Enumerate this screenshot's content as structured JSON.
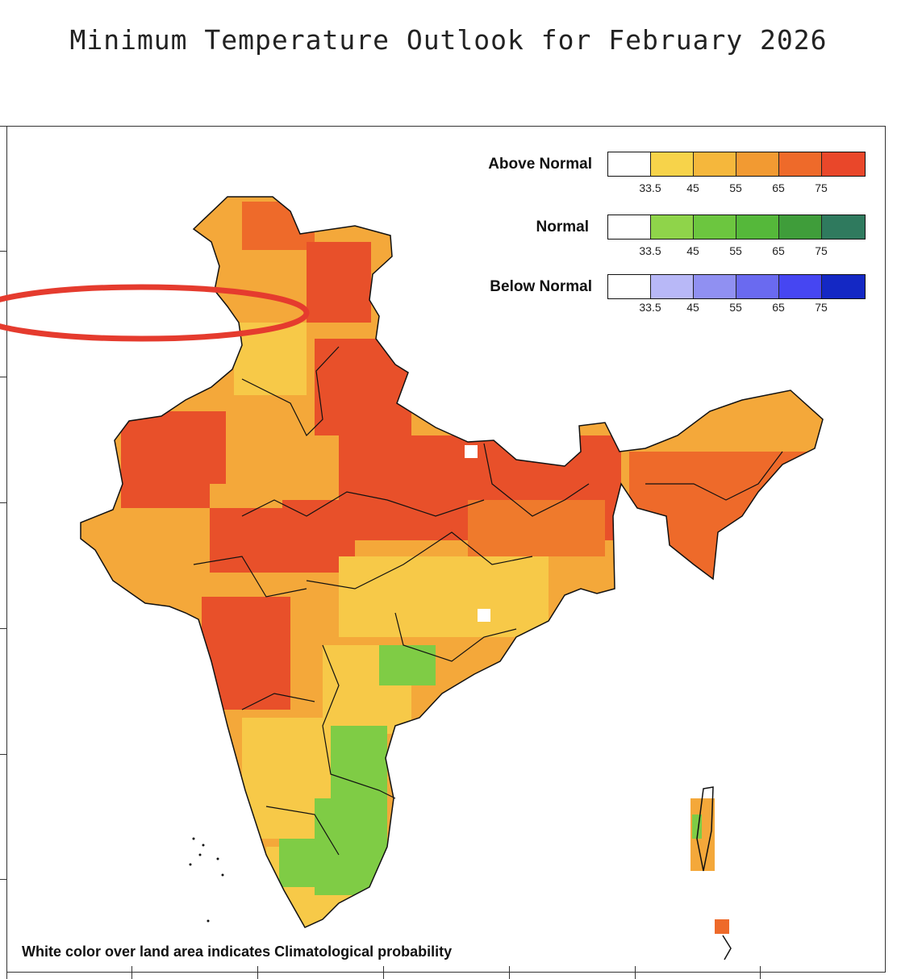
{
  "title": "Minimum Temperature Outlook for February 2026",
  "note": "White color over land area indicates Climatological probability",
  "legend": {
    "ticks": [
      "33.5",
      "45",
      "55",
      "65",
      "75"
    ],
    "rows": [
      {
        "label": "Above Normal",
        "colors": [
          "#ffffff",
          "#f7d34a",
          "#f5b73c",
          "#f29a32",
          "#ee6a2a",
          "#e9472a"
        ]
      },
      {
        "label": "Normal",
        "colors": [
          "#ffffff",
          "#8fd44a",
          "#6cc63f",
          "#55b83a",
          "#3f9d3a",
          "#2f7a5e"
        ]
      },
      {
        "label": "Below Normal",
        "colors": [
          "#ffffff",
          "#b8b8f7",
          "#9090f2",
          "#6a6af0",
          "#4646f2",
          "#1428c4"
        ]
      }
    ]
  },
  "map_colors": {
    "above_low": "#f7c948",
    "above_mid": "#f4a83a",
    "above_high": "#ef7a2c",
    "above_max": "#e8502a",
    "normal": "#7fcc45",
    "climatology": "#ffffff",
    "annotation": "#e53b2e"
  }
}
